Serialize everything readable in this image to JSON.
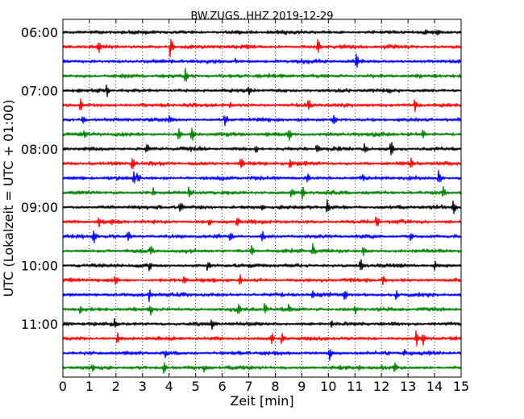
{
  "chart_data": {
    "type": "line",
    "title": "BW.ZUGS..HHZ 2019-12-29",
    "xlabel": "Zeit  [min]",
    "ylabel": "UTC (Lokalzeit = UTC + 01:00)",
    "xlim": [
      0,
      15
    ],
    "x_ticks": [
      0,
      1,
      2,
      3,
      4,
      5,
      6,
      7,
      8,
      9,
      10,
      11,
      12,
      13,
      14,
      15
    ],
    "grid": "vertical dotted at each minute",
    "y_tick_labels": [
      "06:00",
      "07:00",
      "08:00",
      "09:00",
      "10:00",
      "11:00"
    ],
    "trace_colors": [
      "#000000",
      "#ff0000",
      "#0000ff",
      "#008000"
    ],
    "series": [
      {
        "start": "06:00",
        "color": "#000000",
        "spikes": [
          {
            "t": 14.1,
            "a": 0.25
          }
        ]
      },
      {
        "start": "06:15",
        "color": "#ff0000",
        "spikes": [
          {
            "t": 1.35,
            "a": 0.45
          },
          {
            "t": 4.05,
            "a": 0.75
          },
          {
            "t": 9.6,
            "a": 0.55
          }
        ]
      },
      {
        "start": "06:30",
        "color": "#0000ff",
        "spikes": [
          {
            "t": 11.05,
            "a": 0.55
          },
          {
            "t": 6.5,
            "a": 0.2
          }
        ]
      },
      {
        "start": "06:45",
        "color": "#008000",
        "spikes": [
          {
            "t": 4.6,
            "a": 0.55
          }
        ]
      },
      {
        "start": "07:00",
        "color": "#000000",
        "spikes": [
          {
            "t": 1.65,
            "a": 0.45
          },
          {
            "t": 7.0,
            "a": 0.35
          }
        ]
      },
      {
        "start": "07:15",
        "color": "#ff0000",
        "spikes": [
          {
            "t": 0.65,
            "a": 0.5
          },
          {
            "t": 9.25,
            "a": 0.55
          },
          {
            "t": 13.25,
            "a": 0.5
          },
          {
            "t": 6.3,
            "a": 0.3
          }
        ]
      },
      {
        "start": "07:30",
        "color": "#0000ff",
        "spikes": [
          {
            "t": 0.75,
            "a": 0.4
          },
          {
            "t": 6.1,
            "a": 0.55
          },
          {
            "t": 10.2,
            "a": 0.55
          },
          {
            "t": 4.0,
            "a": 0.3
          }
        ]
      },
      {
        "start": "07:45",
        "color": "#008000",
        "spikes": [
          {
            "t": 0.8,
            "a": 0.4
          },
          {
            "t": 4.35,
            "a": 0.45
          },
          {
            "t": 4.85,
            "a": 0.5
          },
          {
            "t": 8.5,
            "a": 0.55
          },
          {
            "t": 13.55,
            "a": 0.45
          }
        ]
      },
      {
        "start": "08:00",
        "color": "#000000",
        "spikes": [
          {
            "t": 3.15,
            "a": 0.45
          },
          {
            "t": 7.25,
            "a": 0.4
          },
          {
            "t": 9.55,
            "a": 0.45
          },
          {
            "t": 11.35,
            "a": 0.45
          },
          {
            "t": 12.35,
            "a": 0.6
          }
        ]
      },
      {
        "start": "08:15",
        "color": "#ff0000",
        "spikes": [
          {
            "t": 2.6,
            "a": 0.55
          },
          {
            "t": 6.7,
            "a": 0.6
          },
          {
            "t": 8.55,
            "a": 0.4
          },
          {
            "t": 13.1,
            "a": 0.45
          }
        ]
      },
      {
        "start": "08:30",
        "color": "#0000ff",
        "spikes": [
          {
            "t": 2.65,
            "a": 0.55
          },
          {
            "t": 2.8,
            "a": 0.5
          },
          {
            "t": 9.2,
            "a": 0.45
          },
          {
            "t": 14.15,
            "a": 0.55
          },
          {
            "t": 11.3,
            "a": 0.3
          }
        ]
      },
      {
        "start": "08:45",
        "color": "#008000",
        "spikes": [
          {
            "t": 3.4,
            "a": 0.35
          },
          {
            "t": 4.75,
            "a": 0.45
          },
          {
            "t": 8.6,
            "a": 0.5
          },
          {
            "t": 9.0,
            "a": 0.55
          },
          {
            "t": 14.3,
            "a": 0.5
          }
        ]
      },
      {
        "start": "09:00",
        "color": "#000000",
        "spikes": [
          {
            "t": 4.4,
            "a": 0.6
          },
          {
            "t": 9.95,
            "a": 0.5
          },
          {
            "t": 14.7,
            "a": 0.6
          },
          {
            "t": 7.5,
            "a": 0.3
          }
        ]
      },
      {
        "start": "09:15",
        "color": "#ff0000",
        "spikes": [
          {
            "t": 1.35,
            "a": 0.4
          },
          {
            "t": 6.55,
            "a": 0.5
          },
          {
            "t": 11.8,
            "a": 0.55
          },
          {
            "t": 5.5,
            "a": 0.35
          }
        ]
      },
      {
        "start": "09:30",
        "color": "#0000ff",
        "spikes": [
          {
            "t": 1.15,
            "a": 0.55
          },
          {
            "t": 2.45,
            "a": 0.4
          },
          {
            "t": 6.3,
            "a": 0.4
          },
          {
            "t": 7.5,
            "a": 0.5
          },
          {
            "t": 13.1,
            "a": 0.45
          }
        ]
      },
      {
        "start": "09:45",
        "color": "#008000",
        "spikes": [
          {
            "t": 3.3,
            "a": 0.45
          },
          {
            "t": 7.1,
            "a": 0.45
          },
          {
            "t": 9.4,
            "a": 0.5
          },
          {
            "t": 11.3,
            "a": 0.4
          }
        ]
      },
      {
        "start": "10:00",
        "color": "#000000",
        "spikes": [
          {
            "t": 3.25,
            "a": 0.45
          },
          {
            "t": 5.45,
            "a": 0.45
          },
          {
            "t": 11.2,
            "a": 0.5
          },
          {
            "t": 14.0,
            "a": 0.35
          }
        ]
      },
      {
        "start": "10:15",
        "color": "#ff0000",
        "spikes": [
          {
            "t": 1.95,
            "a": 0.5
          },
          {
            "t": 4.55,
            "a": 0.45
          },
          {
            "t": 6.65,
            "a": 0.45
          },
          {
            "t": 12.05,
            "a": 0.4
          }
        ]
      },
      {
        "start": "10:30",
        "color": "#0000ff",
        "spikes": [
          {
            "t": 3.25,
            "a": 0.45
          },
          {
            "t": 10.6,
            "a": 0.45
          },
          {
            "t": 12.55,
            "a": 0.35
          },
          {
            "t": 9.4,
            "a": 0.3
          }
        ]
      },
      {
        "start": "10:45",
        "color": "#008000",
        "spikes": [
          {
            "t": 0.65,
            "a": 0.4
          },
          {
            "t": 3.3,
            "a": 0.4
          },
          {
            "t": 6.6,
            "a": 0.45
          },
          {
            "t": 7.6,
            "a": 0.45
          },
          {
            "t": 8.5,
            "a": 0.4
          },
          {
            "t": 11.0,
            "a": 0.4
          }
        ]
      },
      {
        "start": "11:00",
        "color": "#000000",
        "spikes": [
          {
            "t": 1.95,
            "a": 0.45
          },
          {
            "t": 5.6,
            "a": 0.4
          },
          {
            "t": 10.1,
            "a": 0.35
          }
        ]
      },
      {
        "start": "11:15",
        "color": "#ff0000",
        "spikes": [
          {
            "t": 2.05,
            "a": 0.4
          },
          {
            "t": 7.85,
            "a": 0.45
          },
          {
            "t": 8.25,
            "a": 0.5
          },
          {
            "t": 13.3,
            "a": 0.6
          },
          {
            "t": 13.55,
            "a": 0.55
          }
        ]
      },
      {
        "start": "11:30",
        "color": "#0000ff",
        "spikes": [
          {
            "t": 3.85,
            "a": 0.4
          },
          {
            "t": 10.05,
            "a": 0.5
          },
          {
            "t": 12.85,
            "a": 0.35
          }
        ]
      },
      {
        "start": "11:45",
        "color": "#008000",
        "spikes": [
          {
            "t": 1.1,
            "a": 0.35
          },
          {
            "t": 3.8,
            "a": 0.4
          },
          {
            "t": 5.3,
            "a": 0.3
          },
          {
            "t": 11.15,
            "a": 0.4
          },
          {
            "t": 12.5,
            "a": 0.4
          }
        ]
      }
    ]
  }
}
